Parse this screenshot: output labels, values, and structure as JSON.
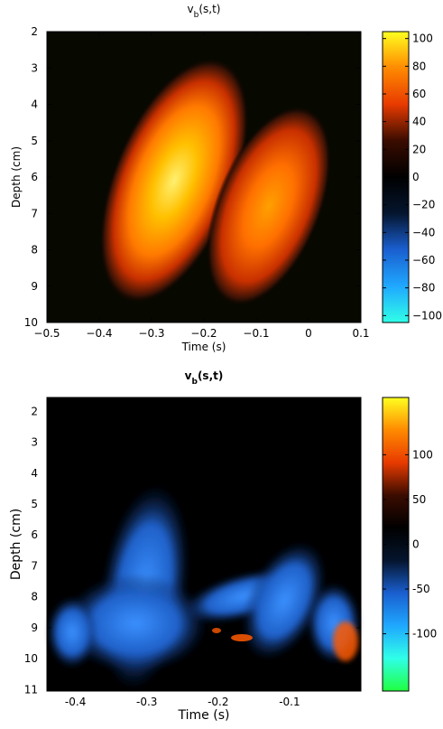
{
  "chart_data": [
    {
      "type": "heatmap",
      "title_parts": [
        "v",
        "b",
        "(s,t)"
      ],
      "title_bold": false,
      "xlabel": "Time (s)",
      "ylabel": "Depth (cm)",
      "xlim": [
        -0.5,
        0.1
      ],
      "ylim": [
        2,
        10
      ],
      "y_reversed": true,
      "xticks": [
        {
          "value": -0.5,
          "label": "−0.5"
        },
        {
          "value": -0.4,
          "label": "−0.4"
        },
        {
          "value": -0.3,
          "label": "−0.3"
        },
        {
          "value": -0.2,
          "label": "−0.2"
        },
        {
          "value": -0.1,
          "label": "−0.1"
        },
        0,
        0.1
      ],
      "yticks": [
        2,
        3,
        4,
        5,
        6,
        7,
        8,
        9,
        10
      ],
      "clim": [
        -105,
        105
      ],
      "cticks": [
        {
          "value": -100,
          "label": "−100"
        },
        {
          "value": -80,
          "label": "−80"
        },
        {
          "value": -60,
          "label": "−60"
        },
        {
          "value": -40,
          "label": "−40"
        },
        {
          "value": -20,
          "label": "−20"
        },
        0,
        20,
        40,
        60,
        80,
        100
      ],
      "colormap": [
        "#30ffe8",
        "#1fa8ff",
        "#1a5fd0",
        "#05152e",
        "#000000",
        "#3a0c00",
        "#e83a00",
        "#ff8a00",
        "#ffff20"
      ]
    },
    {
      "type": "heatmap",
      "title_parts": [
        "v",
        "b",
        "(s,t)"
      ],
      "title_bold": true,
      "xlabel": "Time (s)",
      "ylabel": "Depth (cm)",
      "xlim": [
        -0.44,
        0
      ],
      "ylim": [
        1.55,
        11.05
      ],
      "y_reversed": true,
      "xticks": [
        {
          "value": -0.4,
          "label": "-0.4"
        },
        {
          "value": -0.3,
          "label": "-0.3"
        },
        {
          "value": -0.2,
          "label": "-0.2"
        },
        {
          "value": -0.1,
          "label": "-0.1"
        }
      ],
      "yticks": [
        2,
        3,
        4,
        5,
        6,
        7,
        8,
        9,
        10,
        11
      ],
      "clim": [
        -164,
        164
      ],
      "cticks": [
        -100,
        -50,
        0,
        50,
        100
      ],
      "colormap": [
        "#20ff40",
        "#30ffe8",
        "#1fa8ff",
        "#1a5fd0",
        "#05152e",
        "#000000",
        "#3a0c00",
        "#e83a00",
        "#ff8a00",
        "#ffff20"
      ]
    }
  ]
}
